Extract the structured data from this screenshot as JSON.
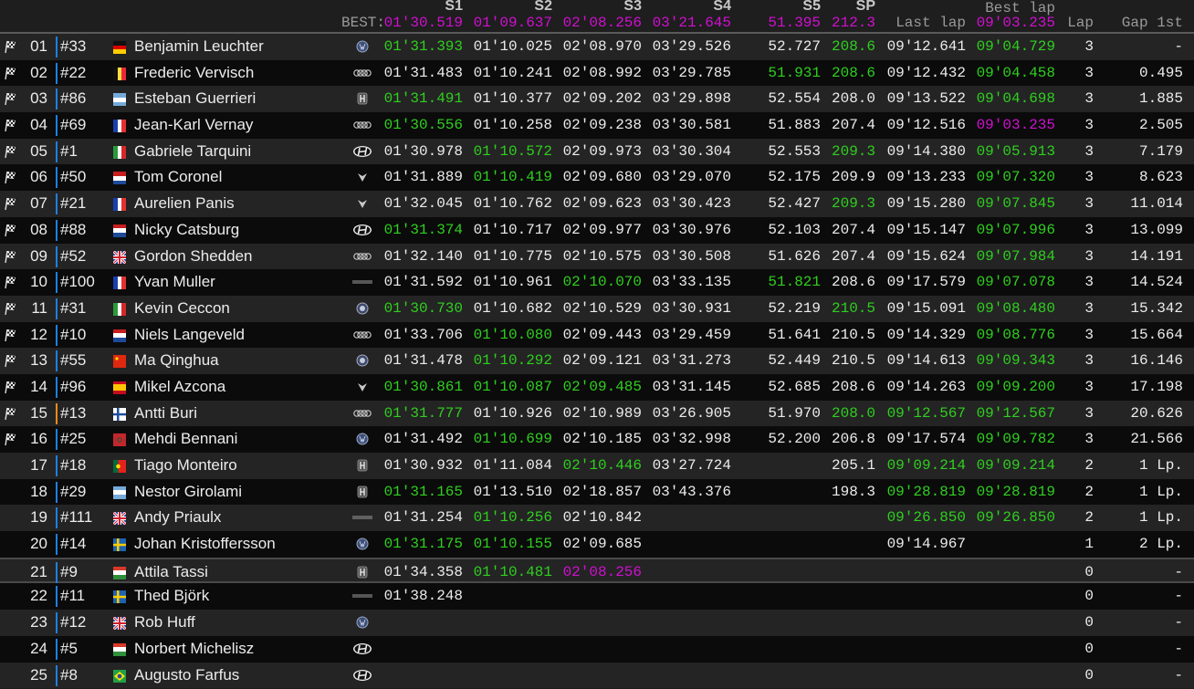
{
  "colors": {
    "purple": "#d10fd1",
    "green": "#2fcf1f",
    "white": "#ececec",
    "bar_default": "#1e7fe0",
    "bar_alert": "#f08a1c"
  },
  "header": {
    "best_label": "BEST:",
    "s1": "S1",
    "s2": "S2",
    "s3": "S3",
    "s4": "S4",
    "s5": "S5",
    "sp": "SP",
    "best_s1": "01'30.519",
    "best_s2": "01'09.637",
    "best_s3": "02'08.256",
    "best_s4": "03'21.645",
    "best_s5": "51.395",
    "best_sp": "212.3",
    "last_lap": "Last lap",
    "best_lap": "Best lap",
    "best_lap_value": "09'03.235",
    "lap": "Lap",
    "gap": "Gap 1st"
  },
  "rows": [
    {
      "pos": "01",
      "num": "#33",
      "country": "DE",
      "name": "Benjamin Leuchter",
      "mfr": "volkswagen",
      "finished": true,
      "bar": "blue",
      "s1": [
        "01'31.393",
        "g"
      ],
      "s2": [
        "01'10.025",
        "w"
      ],
      "s3": [
        "02'08.970",
        "w"
      ],
      "s4": [
        "03'29.526",
        "w"
      ],
      "s5": [
        "52.727",
        "w"
      ],
      "sp": [
        "208.6",
        "g"
      ],
      "last": [
        "09'12.641",
        "w"
      ],
      "best": [
        "09'04.729",
        "g"
      ],
      "lap": "3",
      "gap": "-"
    },
    {
      "pos": "02",
      "num": "#22",
      "country": "BE",
      "name": "Frederic Vervisch",
      "mfr": "audi",
      "finished": true,
      "bar": "blue",
      "s1": [
        "01'31.483",
        "w"
      ],
      "s2": [
        "01'10.241",
        "w"
      ],
      "s3": [
        "02'08.992",
        "w"
      ],
      "s4": [
        "03'29.785",
        "w"
      ],
      "s5": [
        "51.931",
        "g"
      ],
      "sp": [
        "208.6",
        "g"
      ],
      "last": [
        "09'12.432",
        "w"
      ],
      "best": [
        "09'04.458",
        "g"
      ],
      "lap": "3",
      "gap": "0.495"
    },
    {
      "pos": "03",
      "num": "#86",
      "country": "AR",
      "name": "Esteban Guerrieri",
      "mfr": "honda",
      "finished": true,
      "bar": "blue",
      "s1": [
        "01'31.491",
        "g"
      ],
      "s2": [
        "01'10.377",
        "w"
      ],
      "s3": [
        "02'09.202",
        "w"
      ],
      "s4": [
        "03'29.898",
        "w"
      ],
      "s5": [
        "52.554",
        "w"
      ],
      "sp": [
        "208.0",
        "w"
      ],
      "last": [
        "09'13.522",
        "w"
      ],
      "best": [
        "09'04.698",
        "g"
      ],
      "lap": "3",
      "gap": "1.885"
    },
    {
      "pos": "04",
      "num": "#69",
      "country": "FR",
      "name": "Jean-Karl Vernay",
      "mfr": "audi",
      "finished": true,
      "bar": "blue",
      "s1": [
        "01'30.556",
        "g"
      ],
      "s2": [
        "01'10.258",
        "w"
      ],
      "s3": [
        "02'09.238",
        "w"
      ],
      "s4": [
        "03'30.581",
        "w"
      ],
      "s5": [
        "51.883",
        "w"
      ],
      "sp": [
        "207.4",
        "w"
      ],
      "last": [
        "09'12.516",
        "w"
      ],
      "best": [
        "09'03.235",
        "p"
      ],
      "lap": "3",
      "gap": "2.505"
    },
    {
      "pos": "05",
      "num": "#1",
      "country": "IT",
      "name": "Gabriele Tarquini",
      "mfr": "hyundai",
      "finished": true,
      "bar": "blue",
      "s1": [
        "01'30.978",
        "w"
      ],
      "s2": [
        "01'10.572",
        "g"
      ],
      "s3": [
        "02'09.973",
        "w"
      ],
      "s4": [
        "03'30.304",
        "w"
      ],
      "s5": [
        "52.553",
        "w"
      ],
      "sp": [
        "209.3",
        "g"
      ],
      "last": [
        "09'14.380",
        "w"
      ],
      "best": [
        "09'05.913",
        "g"
      ],
      "lap": "3",
      "gap": "7.179"
    },
    {
      "pos": "06",
      "num": "#50",
      "country": "NL",
      "name": "Tom Coronel",
      "mfr": "cupra",
      "finished": true,
      "bar": "blue",
      "s1": [
        "01'31.889",
        "w"
      ],
      "s2": [
        "01'10.419",
        "g"
      ],
      "s3": [
        "02'09.680",
        "w"
      ],
      "s4": [
        "03'29.070",
        "w"
      ],
      "s5": [
        "52.175",
        "w"
      ],
      "sp": [
        "209.9",
        "w"
      ],
      "last": [
        "09'13.233",
        "w"
      ],
      "best": [
        "09'07.320",
        "g"
      ],
      "lap": "3",
      "gap": "8.623"
    },
    {
      "pos": "07",
      "num": "#21",
      "country": "FR",
      "name": "Aurelien Panis",
      "mfr": "cupra",
      "finished": true,
      "bar": "blue",
      "s1": [
        "01'32.045",
        "w"
      ],
      "s2": [
        "01'10.762",
        "w"
      ],
      "s3": [
        "02'09.623",
        "w"
      ],
      "s4": [
        "03'30.423",
        "w"
      ],
      "s5": [
        "52.427",
        "w"
      ],
      "sp": [
        "209.3",
        "g"
      ],
      "last": [
        "09'15.280",
        "w"
      ],
      "best": [
        "09'07.845",
        "g"
      ],
      "lap": "3",
      "gap": "11.014"
    },
    {
      "pos": "08",
      "num": "#88",
      "country": "NL",
      "name": "Nicky Catsburg",
      "mfr": "hyundai",
      "finished": true,
      "bar": "blue",
      "s1": [
        "01'31.374",
        "g"
      ],
      "s2": [
        "01'10.717",
        "w"
      ],
      "s3": [
        "02'09.977",
        "w"
      ],
      "s4": [
        "03'30.976",
        "w"
      ],
      "s5": [
        "52.103",
        "w"
      ],
      "sp": [
        "207.4",
        "w"
      ],
      "last": [
        "09'15.147",
        "w"
      ],
      "best": [
        "09'07.996",
        "g"
      ],
      "lap": "3",
      "gap": "13.099"
    },
    {
      "pos": "09",
      "num": "#52",
      "country": "GB",
      "name": "Gordon Shedden",
      "mfr": "audi",
      "finished": true,
      "bar": "blue",
      "s1": [
        "01'32.140",
        "w"
      ],
      "s2": [
        "01'10.775",
        "w"
      ],
      "s3": [
        "02'10.575",
        "w"
      ],
      "s4": [
        "03'30.508",
        "w"
      ],
      "s5": [
        "51.626",
        "w"
      ],
      "sp": [
        "207.4",
        "w"
      ],
      "last": [
        "09'15.624",
        "w"
      ],
      "best": [
        "09'07.984",
        "g"
      ],
      "lap": "3",
      "gap": "14.191"
    },
    {
      "pos": "10",
      "num": "#100",
      "country": "FR",
      "name": "Yvan Muller",
      "mfr": "lynkco",
      "finished": true,
      "bar": "blue",
      "s1": [
        "01'31.592",
        "w"
      ],
      "s2": [
        "01'10.961",
        "w"
      ],
      "s3": [
        "02'10.070",
        "g"
      ],
      "s4": [
        "03'33.135",
        "w"
      ],
      "s5": [
        "51.821",
        "g"
      ],
      "sp": [
        "208.6",
        "w"
      ],
      "last": [
        "09'17.579",
        "w"
      ],
      "best": [
        "09'07.078",
        "g"
      ],
      "lap": "3",
      "gap": "14.524"
    },
    {
      "pos": "11",
      "num": "#31",
      "country": "IT",
      "name": "Kevin Ceccon",
      "mfr": "alfaromeo",
      "finished": true,
      "bar": "blue",
      "s1": [
        "01'30.730",
        "g"
      ],
      "s2": [
        "01'10.682",
        "w"
      ],
      "s3": [
        "02'10.529",
        "w"
      ],
      "s4": [
        "03'30.931",
        "w"
      ],
      "s5": [
        "52.219",
        "w"
      ],
      "sp": [
        "210.5",
        "g"
      ],
      "last": [
        "09'15.091",
        "w"
      ],
      "best": [
        "09'08.480",
        "g"
      ],
      "lap": "3",
      "gap": "15.342"
    },
    {
      "pos": "12",
      "num": "#10",
      "country": "NL",
      "name": "Niels Langeveld",
      "mfr": "audi",
      "finished": true,
      "bar": "blue",
      "s1": [
        "01'33.706",
        "w"
      ],
      "s2": [
        "01'10.080",
        "g"
      ],
      "s3": [
        "02'09.443",
        "w"
      ],
      "s4": [
        "03'29.459",
        "w"
      ],
      "s5": [
        "51.641",
        "w"
      ],
      "sp": [
        "210.5",
        "w"
      ],
      "last": [
        "09'14.329",
        "w"
      ],
      "best": [
        "09'08.776",
        "g"
      ],
      "lap": "3",
      "gap": "15.664"
    },
    {
      "pos": "13",
      "num": "#55",
      "country": "CN",
      "name": "Ma Qinghua",
      "mfr": "alfaromeo",
      "finished": true,
      "bar": "blue",
      "s1": [
        "01'31.478",
        "w"
      ],
      "s2": [
        "01'10.292",
        "g"
      ],
      "s3": [
        "02'09.121",
        "w"
      ],
      "s4": [
        "03'31.273",
        "w"
      ],
      "s5": [
        "52.449",
        "w"
      ],
      "sp": [
        "210.5",
        "w"
      ],
      "last": [
        "09'14.613",
        "w"
      ],
      "best": [
        "09'09.343",
        "g"
      ],
      "lap": "3",
      "gap": "16.146"
    },
    {
      "pos": "14",
      "num": "#96",
      "country": "ES",
      "name": "Mikel Azcona",
      "mfr": "cupra",
      "finished": true,
      "bar": "blue",
      "s1": [
        "01'30.861",
        "g"
      ],
      "s2": [
        "01'10.087",
        "g"
      ],
      "s3": [
        "02'09.485",
        "g"
      ],
      "s4": [
        "03'31.145",
        "w"
      ],
      "s5": [
        "52.685",
        "w"
      ],
      "sp": [
        "208.6",
        "w"
      ],
      "last": [
        "09'14.263",
        "w"
      ],
      "best": [
        "09'09.200",
        "g"
      ],
      "lap": "3",
      "gap": "17.198"
    },
    {
      "pos": "15",
      "num": "#13",
      "country": "FI",
      "name": "Antti Buri",
      "mfr": "audi",
      "finished": true,
      "bar": "orange",
      "s1": [
        "01'31.777",
        "g"
      ],
      "s2": [
        "01'10.926",
        "w"
      ],
      "s3": [
        "02'10.989",
        "w"
      ],
      "s4": [
        "03'26.905",
        "w"
      ],
      "s5": [
        "51.970",
        "w"
      ],
      "sp": [
        "208.0",
        "g"
      ],
      "last": [
        "09'12.567",
        "g"
      ],
      "best": [
        "09'12.567",
        "g"
      ],
      "lap": "3",
      "gap": "20.626"
    },
    {
      "pos": "16",
      "num": "#25",
      "country": "MA",
      "name": "Mehdi Bennani",
      "mfr": "volkswagen",
      "finished": true,
      "bar": "blue",
      "s1": [
        "01'31.492",
        "w"
      ],
      "s2": [
        "01'10.699",
        "g"
      ],
      "s3": [
        "02'10.185",
        "w"
      ],
      "s4": [
        "03'32.998",
        "w"
      ],
      "s5": [
        "52.200",
        "w"
      ],
      "sp": [
        "206.8",
        "w"
      ],
      "last": [
        "09'17.574",
        "w"
      ],
      "best": [
        "09'09.782",
        "g"
      ],
      "lap": "3",
      "gap": "21.566"
    },
    {
      "pos": "17",
      "num": "#18",
      "country": "PT",
      "name": "Tiago Monteiro",
      "mfr": "honda",
      "finished": false,
      "bar": "blue",
      "s1": [
        "01'30.932",
        "w"
      ],
      "s2": [
        "01'11.084",
        "w"
      ],
      "s3": [
        "02'10.446",
        "g"
      ],
      "s4": [
        "03'27.724",
        "w"
      ],
      "s5": [
        "",
        ""
      ],
      "sp": [
        "205.1",
        "w"
      ],
      "last": [
        "09'09.214",
        "g"
      ],
      "best": [
        "09'09.214",
        "g"
      ],
      "lap": "2",
      "gap": "1 Lp."
    },
    {
      "pos": "18",
      "num": "#29",
      "country": "AR",
      "name": "Nestor Girolami",
      "mfr": "honda",
      "finished": false,
      "bar": "blue",
      "s1": [
        "01'31.165",
        "g"
      ],
      "s2": [
        "01'13.510",
        "w"
      ],
      "s3": [
        "02'18.857",
        "w"
      ],
      "s4": [
        "03'43.376",
        "w"
      ],
      "s5": [
        "",
        ""
      ],
      "sp": [
        "198.3",
        "w"
      ],
      "last": [
        "09'28.819",
        "g"
      ],
      "best": [
        "09'28.819",
        "g"
      ],
      "lap": "2",
      "gap": "1 Lp."
    },
    {
      "pos": "19",
      "num": "#111",
      "country": "GB",
      "name": "Andy Priaulx",
      "mfr": "lynkco",
      "finished": false,
      "bar": "blue",
      "s1": [
        "01'31.254",
        "w"
      ],
      "s2": [
        "01'10.256",
        "g"
      ],
      "s3": [
        "02'10.842",
        "w"
      ],
      "s4": [
        "",
        ""
      ],
      "s5": [
        "",
        ""
      ],
      "sp": [
        "",
        ""
      ],
      "last": [
        "09'26.850",
        "g"
      ],
      "best": [
        "09'26.850",
        "g"
      ],
      "lap": "2",
      "gap": "1 Lp."
    },
    {
      "pos": "20",
      "num": "#14",
      "country": "SE",
      "name": "Johan Kristoffersson",
      "mfr": "volkswagen",
      "finished": false,
      "bar": "blue",
      "s1": [
        "01'31.175",
        "g"
      ],
      "s2": [
        "01'10.155",
        "g"
      ],
      "s3": [
        "02'09.685",
        "w"
      ],
      "s4": [
        "",
        ""
      ],
      "s5": [
        "",
        ""
      ],
      "sp": [
        "",
        ""
      ],
      "last": [
        "09'14.967",
        "w"
      ],
      "best": [
        "",
        ""
      ],
      "lap": "1",
      "gap": "2 Lp."
    },
    {
      "pos": "21",
      "num": "#9",
      "country": "HU",
      "name": "Attila Tassi",
      "mfr": "honda",
      "finished": false,
      "bar": "blue",
      "selected": true,
      "s1": [
        "01'34.358",
        "w"
      ],
      "s2": [
        "01'10.481",
        "g"
      ],
      "s3": [
        "02'08.256",
        "p"
      ],
      "s4": [
        "",
        ""
      ],
      "s5": [
        "",
        ""
      ],
      "sp": [
        "",
        ""
      ],
      "last": [
        "",
        ""
      ],
      "best": [
        "",
        ""
      ],
      "lap": "0",
      "gap": "-"
    },
    {
      "pos": "22",
      "num": "#11",
      "country": "SE",
      "name": "Thed Björk",
      "mfr": "lynkco",
      "finished": false,
      "bar": "blue",
      "s1": [
        "01'38.248",
        "w"
      ],
      "s2": [
        "",
        ""
      ],
      "s3": [
        "",
        ""
      ],
      "s4": [
        "",
        ""
      ],
      "s5": [
        "",
        ""
      ],
      "sp": [
        "",
        ""
      ],
      "last": [
        "",
        ""
      ],
      "best": [
        "",
        ""
      ],
      "lap": "0",
      "gap": "-"
    },
    {
      "pos": "23",
      "num": "#12",
      "country": "GB",
      "name": "Rob Huff",
      "mfr": "volkswagen",
      "finished": false,
      "bar": "blue",
      "s1": [
        "",
        ""
      ],
      "s2": [
        "",
        ""
      ],
      "s3": [
        "",
        ""
      ],
      "s4": [
        "",
        ""
      ],
      "s5": [
        "",
        ""
      ],
      "sp": [
        "",
        ""
      ],
      "last": [
        "",
        ""
      ],
      "best": [
        "",
        ""
      ],
      "lap": "0",
      "gap": "-"
    },
    {
      "pos": "24",
      "num": "#5",
      "country": "HU",
      "name": "Norbert Michelisz",
      "mfr": "hyundai",
      "finished": false,
      "bar": "blue",
      "s1": [
        "",
        ""
      ],
      "s2": [
        "",
        ""
      ],
      "s3": [
        "",
        ""
      ],
      "s4": [
        "",
        ""
      ],
      "s5": [
        "",
        ""
      ],
      "sp": [
        "",
        ""
      ],
      "last": [
        "",
        ""
      ],
      "best": [
        "",
        ""
      ],
      "lap": "0",
      "gap": "-"
    },
    {
      "pos": "25",
      "num": "#8",
      "country": "BR",
      "name": "Augusto Farfus",
      "mfr": "hyundai",
      "finished": false,
      "bar": "blue",
      "s1": [
        "",
        ""
      ],
      "s2": [
        "",
        ""
      ],
      "s3": [
        "",
        ""
      ],
      "s4": [
        "",
        ""
      ],
      "s5": [
        "",
        ""
      ],
      "sp": [
        "",
        ""
      ],
      "last": [
        "",
        ""
      ],
      "best": [
        "",
        ""
      ],
      "lap": "0",
      "gap": "-"
    }
  ]
}
